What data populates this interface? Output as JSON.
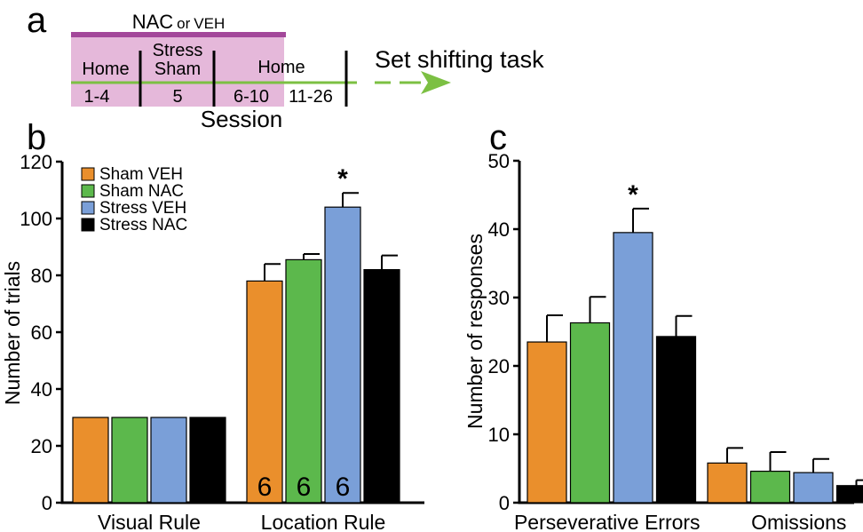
{
  "colors": {
    "sham_veh": "#EA8F2C",
    "sham_nac": "#5CB84C",
    "stress_veh": "#7A9FD8",
    "stress_nac": "#000000",
    "timeline_band": "#E5B8DA",
    "treatment_bar": "#A3489A",
    "timeline_line": "#7CC043",
    "arrow": "#7CC043"
  },
  "panel_a": {
    "label": "a",
    "treatment_label": "NAC",
    "treatment_or": "or",
    "treatment_veh": "VEH",
    "phase_home1": "Home",
    "phase_stress": "Stress",
    "phase_sham": "Sham",
    "phase_home2": "Home",
    "session_1_4": "1-4",
    "session_5": "5",
    "session_6_10": "6-10",
    "session_11_26": "11-26",
    "session_title": "Session",
    "task_label": "Set shifting task"
  },
  "chart_data": [
    {
      "panel": "b",
      "type": "bar",
      "ylabel": "Number of trials",
      "ylim": [
        0,
        120
      ],
      "yticks": [
        0,
        20,
        40,
        60,
        80,
        100,
        120
      ],
      "categories": [
        "Visual Rule",
        "Location Rule"
      ],
      "series": [
        {
          "name": "Sham VEH",
          "color_key": "sham_veh",
          "values": [
            30,
            78
          ],
          "errors": [
            0,
            6
          ],
          "n": [
            "",
            "6"
          ]
        },
        {
          "name": "Sham NAC",
          "color_key": "sham_nac",
          "values": [
            30,
            85.5
          ],
          "errors": [
            0,
            2
          ],
          "n": [
            "",
            "6"
          ]
        },
        {
          "name": "Stress VEH",
          "color_key": "stress_veh",
          "values": [
            30,
            104
          ],
          "errors": [
            0,
            5
          ],
          "n": [
            "",
            "6"
          ]
        },
        {
          "name": "Stress NAC",
          "color_key": "stress_nac",
          "values": [
            30,
            82
          ],
          "errors": [
            0,
            5
          ],
          "n": [
            "",
            "6"
          ]
        }
      ],
      "significance": [
        {
          "category": 1,
          "series": 2,
          "symbol": "*"
        }
      ],
      "legend": [
        "Sham VEH",
        "Sham NAC",
        "Stress VEH",
        "Stress NAC"
      ],
      "legend_position": "top-left"
    },
    {
      "panel": "c",
      "type": "bar",
      "ylabel": "Number of responses",
      "ylim": [
        0,
        50
      ],
      "yticks": [
        0,
        10,
        20,
        30,
        40,
        50
      ],
      "categories": [
        "Perseverative Errors",
        "Omissions"
      ],
      "series": [
        {
          "name": "Sham VEH",
          "color_key": "sham_veh",
          "values": [
            23.5,
            5.8
          ],
          "errors": [
            3.9,
            2.2
          ]
        },
        {
          "name": "Sham NAC",
          "color_key": "sham_nac",
          "values": [
            26.3,
            4.6
          ],
          "errors": [
            3.8,
            2.8
          ]
        },
        {
          "name": "Stress VEH",
          "color_key": "stress_veh",
          "values": [
            39.5,
            4.4
          ],
          "errors": [
            3.5,
            2.0
          ]
        },
        {
          "name": "Stress NAC",
          "color_key": "stress_nac",
          "values": [
            24.3,
            2.5
          ],
          "errors": [
            3.0,
            0.8
          ]
        }
      ],
      "significance": [
        {
          "category": 0,
          "series": 2,
          "symbol": "*"
        }
      ]
    }
  ],
  "panel_labels": {
    "b": "b",
    "c": "c"
  }
}
